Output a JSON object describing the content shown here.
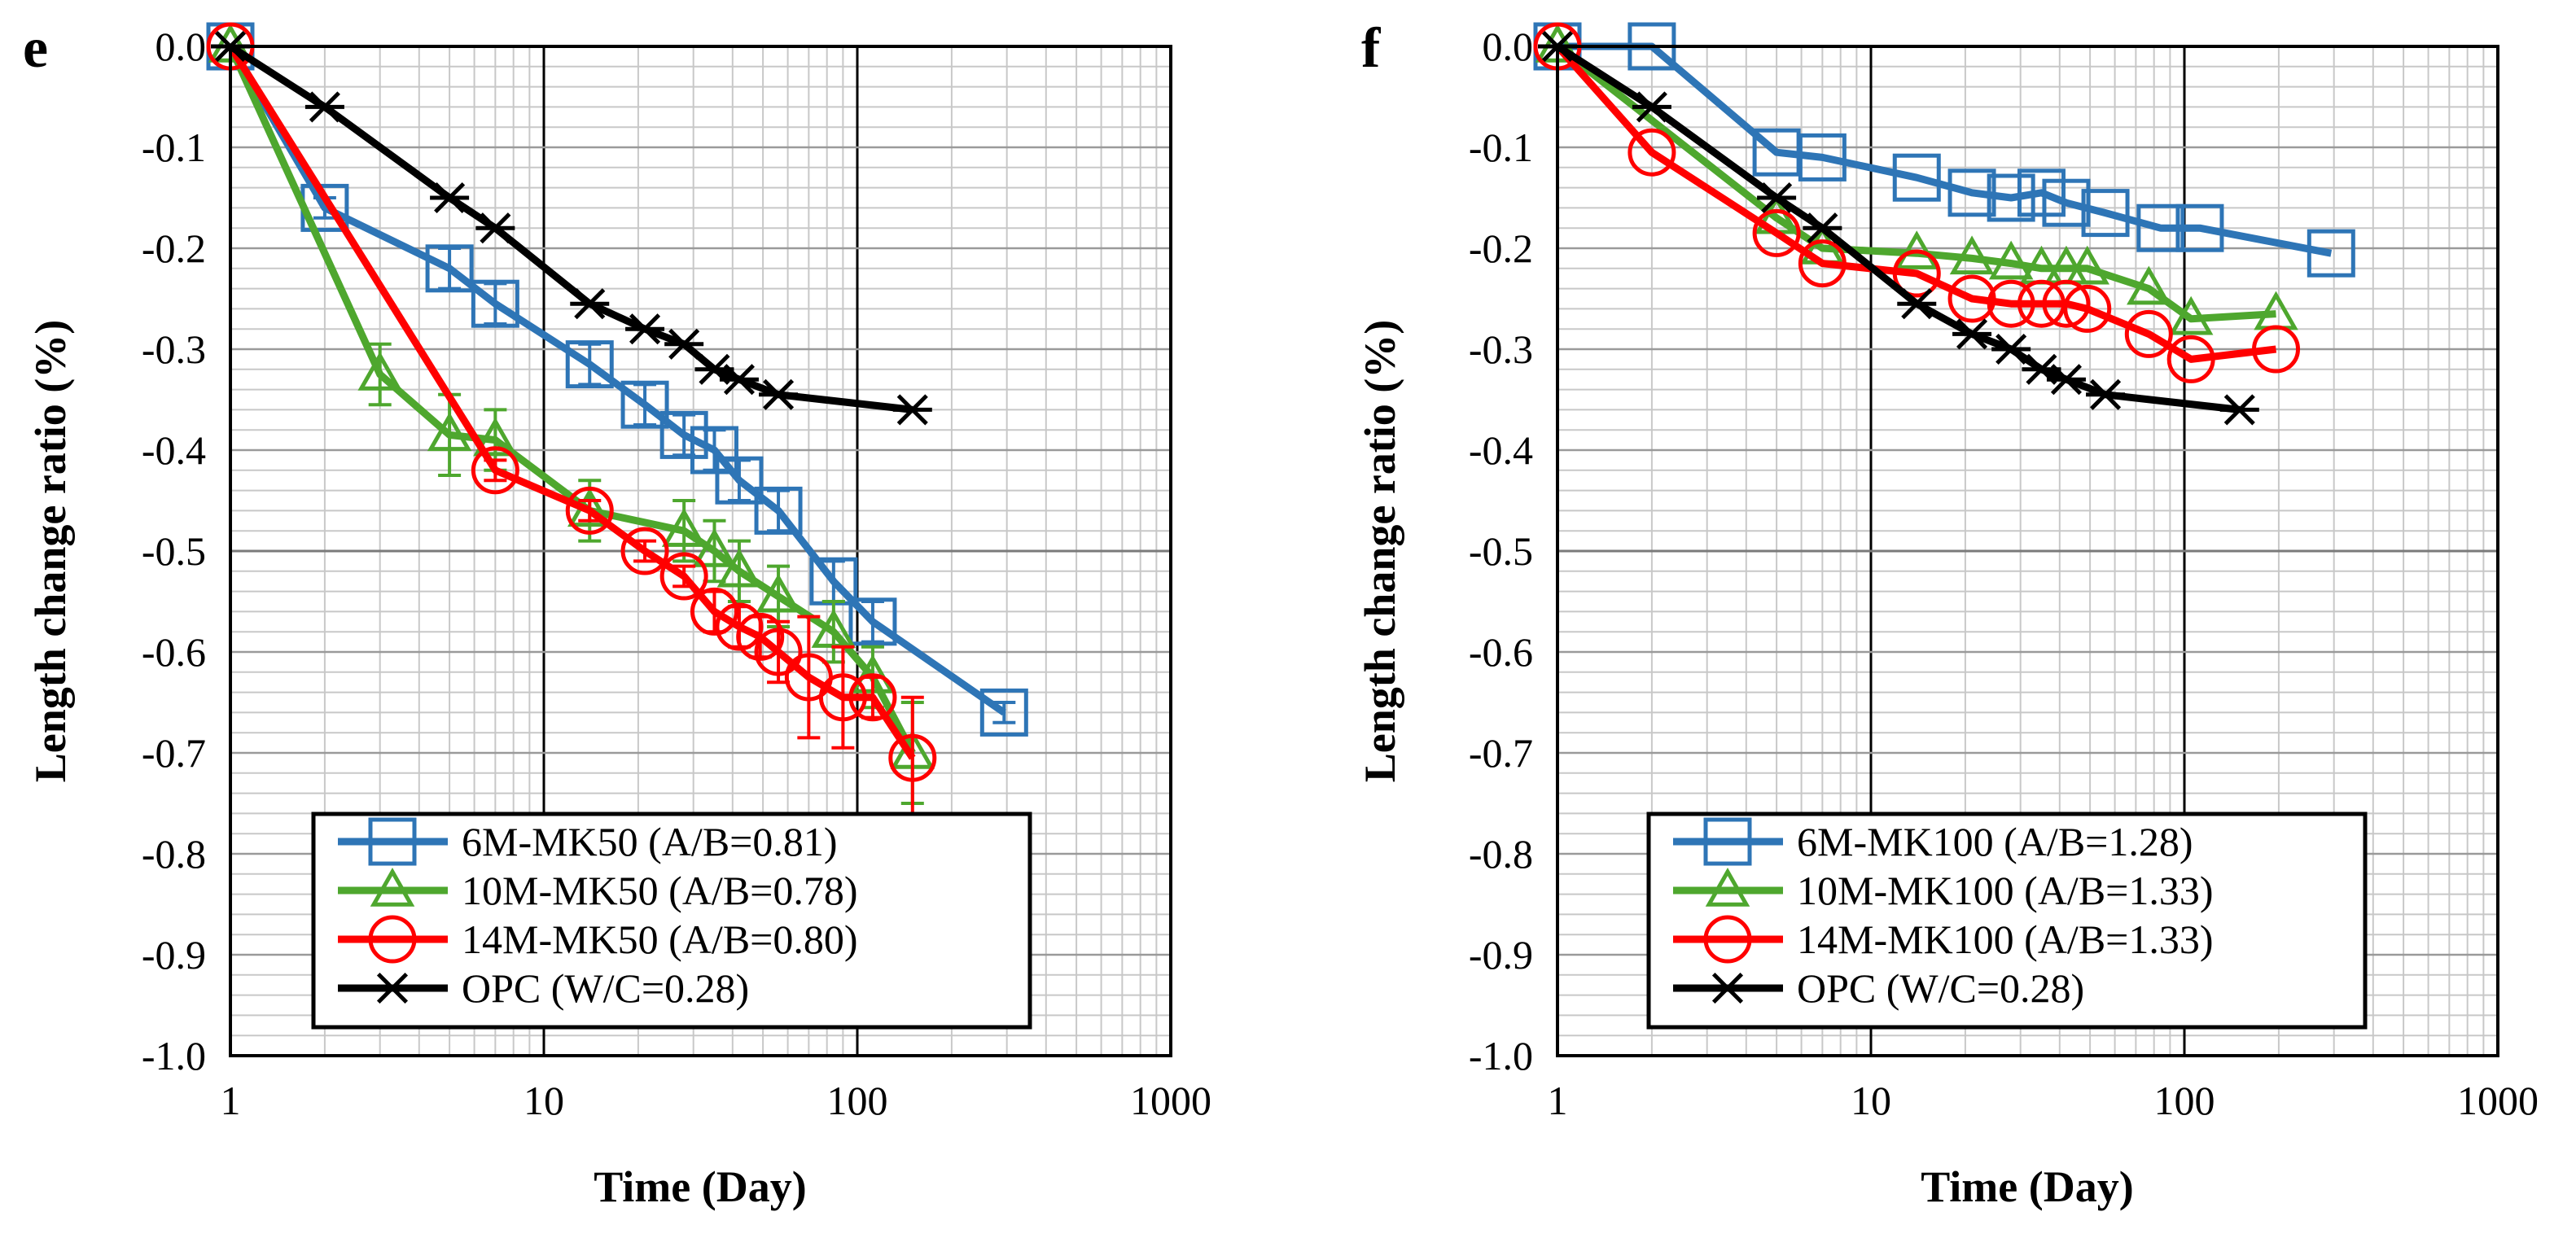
{
  "chart_data": [
    {
      "type": "line",
      "panel_label": "e",
      "xscale": "log",
      "xlim": [
        1,
        1000
      ],
      "ylim": [
        -1.0,
        0.0
      ],
      "xticks": [
        "1",
        "10",
        "100",
        "1000"
      ],
      "yticks": [
        "0.0",
        "-0.1",
        "-0.2",
        "-0.3",
        "-0.4",
        "-0.5",
        "-0.6",
        "-0.7",
        "-0.8",
        "-0.9",
        "-1.0"
      ],
      "xlabel": "Time (Day)",
      "ylabel": "Length change ratio (%)",
      "grid": true,
      "legend_position": "bottom",
      "series": [
        {
          "name": "6M-MK50 (A/B=0.81)",
          "color": "#2E75B6",
          "marker": "square",
          "x": [
            1,
            2,
            5,
            7,
            14,
            21,
            28,
            35,
            42,
            56,
            84,
            112,
            294
          ],
          "y": [
            0,
            -0.16,
            -0.22,
            -0.255,
            -0.315,
            -0.355,
            -0.385,
            -0.4,
            -0.43,
            -0.46,
            -0.53,
            -0.57,
            -0.66
          ],
          "err": [
            0,
            0.01,
            0.02,
            0.02,
            0.02,
            0.02,
            0.02,
            0.02,
            0.02,
            0.02,
            0.02,
            0.02,
            0.01
          ]
        },
        {
          "name": "10M-MK50 (A/B=0.78)",
          "color": "#4EA72E",
          "marker": "triangle",
          "x": [
            1,
            3,
            5,
            7,
            14,
            28,
            35,
            42,
            56,
            84,
            112,
            150
          ],
          "y": [
            0,
            -0.325,
            -0.385,
            -0.39,
            -0.46,
            -0.48,
            -0.5,
            -0.52,
            -0.545,
            -0.58,
            -0.625,
            -0.7
          ],
          "err": [
            0,
            0.03,
            0.04,
            0.03,
            0.03,
            0.03,
            0.03,
            0.03,
            0.03,
            0.03,
            0.03,
            0.05
          ]
        },
        {
          "name": "14M-MK50 (A/B=0.80)",
          "color": "#FF0000",
          "marker": "circle",
          "x": [
            1,
            7,
            14,
            21,
            28,
            35,
            42,
            49,
            56,
            70,
            90,
            112,
            150
          ],
          "y": [
            0,
            -0.42,
            -0.46,
            -0.5,
            -0.525,
            -0.56,
            -0.575,
            -0.585,
            -0.6,
            -0.625,
            -0.645,
            -0.645,
            -0.705
          ],
          "err": [
            0,
            0.01,
            0.01,
            0.01,
            0.01,
            0.02,
            0.02,
            0.02,
            0.03,
            0.06,
            0.05,
            0.02,
            0.06
          ]
        },
        {
          "name": "OPC (W/C=0.28)",
          "color": "#000000",
          "marker": "star",
          "x": [
            1,
            2,
            5,
            7,
            14,
            21,
            28,
            35,
            42,
            56,
            150
          ],
          "y": [
            0,
            -0.06,
            -0.15,
            -0.18,
            -0.255,
            -0.28,
            -0.295,
            -0.32,
            -0.33,
            -0.345,
            -0.36
          ],
          "err": [
            0,
            0,
            0,
            0,
            0,
            0,
            0,
            0,
            0,
            0,
            0
          ]
        }
      ]
    },
    {
      "type": "line",
      "panel_label": "f",
      "xscale": "log",
      "xlim": [
        1,
        1000
      ],
      "ylim": [
        -1.0,
        0.0
      ],
      "xticks": [
        "1",
        "10",
        "100",
        "1000"
      ],
      "yticks": [
        "0.0",
        "-0.1",
        "-0.2",
        "-0.3",
        "-0.4",
        "-0.5",
        "-0.6",
        "-0.7",
        "-0.8",
        "-0.9",
        "-1.0"
      ],
      "xlabel": "Time (Day)",
      "ylabel": "Length change ratio (%)",
      "grid": true,
      "legend_position": "bottom",
      "series": [
        {
          "name": "6M-MK100 (A/B=1.28)",
          "color": "#2E75B6",
          "marker": "square",
          "x": [
            1,
            2,
            5,
            7,
            14,
            21,
            28,
            35,
            42,
            56,
            84,
            112,
            294
          ],
          "y": [
            0,
            0,
            -0.105,
            -0.11,
            -0.13,
            -0.145,
            -0.15,
            -0.145,
            -0.155,
            -0.165,
            -0.18,
            -0.18,
            -0.205
          ],
          "err": [
            0,
            0,
            0,
            0,
            0,
            0,
            0,
            0,
            0,
            0,
            0,
            0,
            0
          ]
        },
        {
          "name": "10M-MK100 (A/B=1.33)",
          "color": "#4EA72E",
          "marker": "triangle",
          "x": [
            1,
            5,
            7,
            14,
            21,
            28,
            35,
            42,
            49,
            77,
            105,
            196
          ],
          "y": [
            0,
            -0.17,
            -0.2,
            -0.205,
            -0.21,
            -0.215,
            -0.22,
            -0.22,
            -0.22,
            -0.24,
            -0.27,
            -0.265
          ],
          "err": [
            0,
            0,
            0,
            0,
            0,
            0,
            0,
            0,
            0,
            0,
            0,
            0
          ]
        },
        {
          "name": "14M-MK100 (A/B=1.33)",
          "color": "#FF0000",
          "marker": "circle",
          "x": [
            1,
            2,
            5,
            7,
            14,
            21,
            28,
            35,
            42,
            49,
            77,
            105,
            196
          ],
          "y": [
            0,
            -0.105,
            -0.185,
            -0.215,
            -0.225,
            -0.25,
            -0.255,
            -0.255,
            -0.255,
            -0.26,
            -0.285,
            -0.31,
            -0.3
          ],
          "err": [
            0,
            0,
            0,
            0,
            0,
            0,
            0,
            0,
            0,
            0,
            0,
            0,
            0
          ]
        },
        {
          "name": "OPC (W/C=0.28)",
          "color": "#000000",
          "marker": "star",
          "x": [
            1,
            2,
            5,
            7,
            14,
            21,
            28,
            35,
            42,
            56,
            150
          ],
          "y": [
            0,
            -0.06,
            -0.15,
            -0.18,
            -0.255,
            -0.285,
            -0.3,
            -0.32,
            -0.33,
            -0.345,
            -0.36
          ],
          "err": [
            0,
            0,
            0,
            0,
            0,
            0,
            0,
            0,
            0,
            0,
            0
          ]
        }
      ]
    }
  ]
}
